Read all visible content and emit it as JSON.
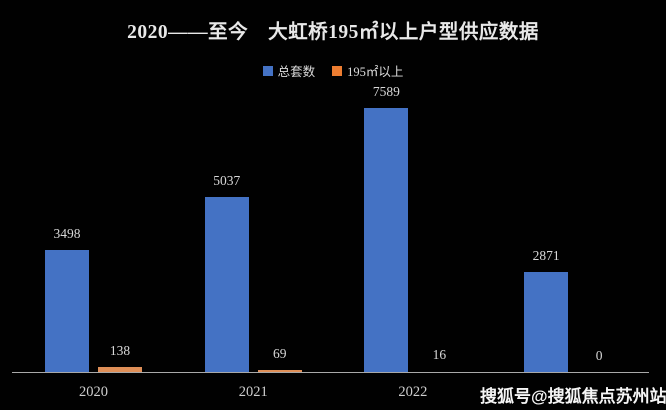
{
  "title": "2020——至今　大虹桥195㎡以上户型供应数据",
  "legend": {
    "items": [
      {
        "label": "总套数",
        "color": "#4472C4"
      },
      {
        "label": "195㎡以上",
        "color": "#ED7D31"
      }
    ]
  },
  "watermark": "搜狐号@搜狐焦点苏州站",
  "chart_data": {
    "type": "bar",
    "categories": [
      "2020",
      "2021",
      "2022",
      ""
    ],
    "series": [
      {
        "name": "总套数",
        "key": "total-units",
        "color": "#4472C4",
        "values": [
          3498,
          5037,
          7589,
          2871
        ]
      },
      {
        "name": "195㎡以上",
        "key": "over-195sqm",
        "color": "#DF8F58",
        "values": [
          138,
          69,
          16,
          0
        ]
      }
    ],
    "ylim": [
      0,
      7589
    ],
    "grid": false,
    "legend_position": "top",
    "value_labels": true,
    "background": "#000000",
    "axis_line_color": "#A9A9A9"
  }
}
